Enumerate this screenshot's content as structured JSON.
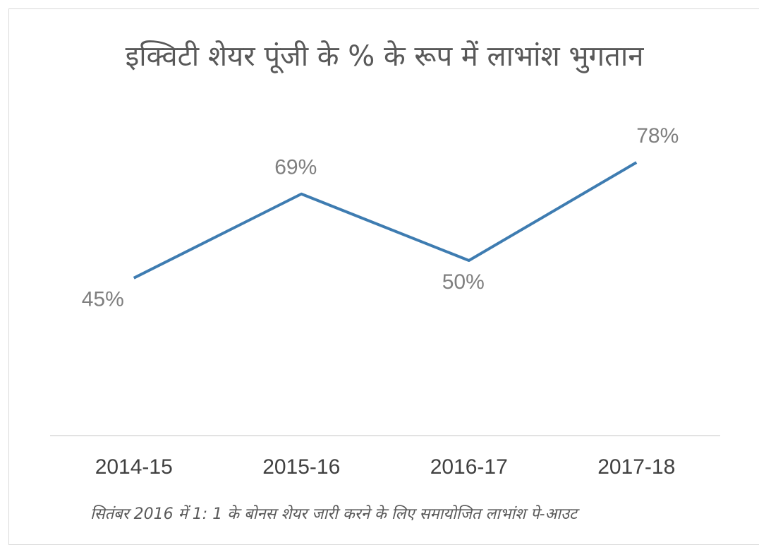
{
  "chart_data": {
    "type": "line",
    "title": "इक्विटी शेयर पूंजी के % के रूप में लाभांश भुगतान",
    "categories": [
      "2014-15",
      "2015-16",
      "2016-17",
      "2017-18"
    ],
    "series": [
      {
        "name": "लाभांश भुगतान",
        "color": "#3e7cb1",
        "values": [
          45,
          69,
          50,
          78
        ],
        "value_labels": [
          "45%",
          "69%",
          "50%",
          "78%"
        ]
      }
    ],
    "ylim": [
      0,
      100
    ],
    "note": "सितंबर 2016 में 1: 1 के बोनस शेयर जारी करने के लिए समायोजित लाभांश पे-आउट"
  }
}
